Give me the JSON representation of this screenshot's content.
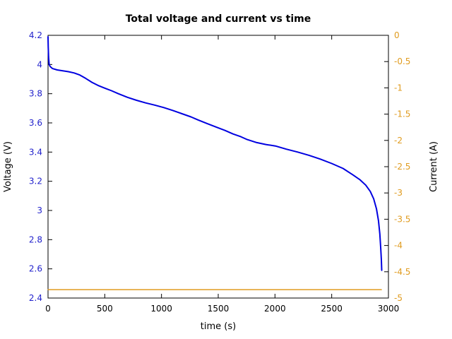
{
  "figure": {
    "background": "#ffffff",
    "border_color": "#000000"
  },
  "chart_data": {
    "type": "line",
    "title": "Total voltage and current vs time",
    "xlabel": "time (s)",
    "ylabel_left": "Voltage (V)",
    "ylabel_right": "Current (A)",
    "xlim": [
      0,
      3000
    ],
    "ylim_left": [
      2.4,
      4.2
    ],
    "ylim_right": [
      -5,
      0
    ],
    "x_ticks": [
      0,
      500,
      1000,
      1500,
      2000,
      2500,
      3000
    ],
    "y_ticks_left": [
      2.4,
      2.6,
      2.8,
      3,
      3.2,
      3.4,
      3.6,
      3.8,
      4,
      4.2
    ],
    "y_ticks_right": [
      0,
      -0.5,
      -1,
      -1.5,
      -2,
      -2.5,
      -3,
      -3.5,
      -4,
      -4.5,
      -5
    ],
    "grid": false,
    "legend": "none",
    "colors": {
      "voltage_line": "#0000e0",
      "voltage_tick_text": "#2222cc",
      "current_line": "#e09c20",
      "current_tick_text": "#e09c20"
    },
    "series": [
      {
        "name": "voltage",
        "axis": "left",
        "color": "#0000e0",
        "width": 2,
        "points": [
          [
            0,
            4.19
          ],
          [
            2,
            4.12
          ],
          [
            5,
            4.05
          ],
          [
            10,
            4.0
          ],
          [
            20,
            3.985
          ],
          [
            40,
            3.972
          ],
          [
            80,
            3.963
          ],
          [
            130,
            3.957
          ],
          [
            180,
            3.951
          ],
          [
            230,
            3.942
          ],
          [
            280,
            3.928
          ],
          [
            330,
            3.906
          ],
          [
            386,
            3.878
          ],
          [
            440,
            3.857
          ],
          [
            500,
            3.838
          ],
          [
            560,
            3.82
          ],
          [
            620,
            3.8
          ],
          [
            700,
            3.775
          ],
          [
            780,
            3.755
          ],
          [
            860,
            3.737
          ],
          [
            940,
            3.722
          ],
          [
            1020,
            3.705
          ],
          [
            1100,
            3.685
          ],
          [
            1180,
            3.663
          ],
          [
            1260,
            3.641
          ],
          [
            1320,
            3.621
          ],
          [
            1400,
            3.596
          ],
          [
            1480,
            3.572
          ],
          [
            1560,
            3.548
          ],
          [
            1631,
            3.524
          ],
          [
            1700,
            3.505
          ],
          [
            1755,
            3.486
          ],
          [
            1840,
            3.465
          ],
          [
            1920,
            3.452
          ],
          [
            2004,
            3.442
          ],
          [
            2100,
            3.42
          ],
          [
            2200,
            3.4
          ],
          [
            2300,
            3.378
          ],
          [
            2400,
            3.352
          ],
          [
            2500,
            3.322
          ],
          [
            2600,
            3.288
          ],
          [
            2689,
            3.243
          ],
          [
            2750,
            3.21
          ],
          [
            2800,
            3.173
          ],
          [
            2840,
            3.13
          ],
          [
            2870,
            3.08
          ],
          [
            2895,
            3.01
          ],
          [
            2912,
            2.93
          ],
          [
            2924,
            2.84
          ],
          [
            2932,
            2.74
          ],
          [
            2938,
            2.66
          ],
          [
            2941,
            2.59
          ]
        ]
      },
      {
        "name": "current",
        "axis": "right",
        "color": "#e09c20",
        "width": 1.5,
        "points": [
          [
            0,
            -4.84
          ],
          [
            2938,
            -4.84
          ]
        ]
      }
    ]
  }
}
